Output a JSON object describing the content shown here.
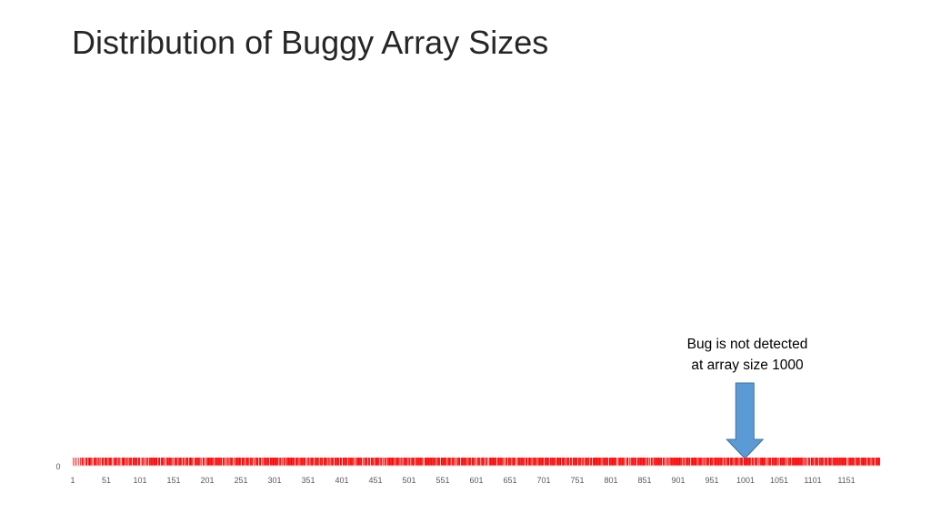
{
  "title": "Distribution of Buggy Array Sizes",
  "chart_data": {
    "type": "bar",
    "x_tick_labels": [
      "1",
      "51",
      "101",
      "151",
      "201",
      "251",
      "301",
      "351",
      "401",
      "451",
      "501",
      "551",
      "601",
      "651",
      "701",
      "751",
      "801",
      "851",
      "901",
      "951",
      "1001",
      "1051",
      "1101",
      "1151"
    ],
    "y_tick_labels": [
      "0"
    ],
    "x_range": [
      1,
      1200
    ],
    "bar_color": "#ff0000",
    "gaps": [
      2,
      3,
      5,
      7,
      8,
      10,
      11,
      13,
      17,
      19,
      23,
      29,
      31,
      37,
      41,
      43,
      47,
      53,
      59,
      61,
      67,
      71,
      73,
      79,
      83,
      89,
      97,
      101,
      103,
      107,
      109,
      113,
      127,
      131,
      137,
      139,
      149,
      151,
      157,
      163,
      167,
      173,
      179,
      181,
      191,
      193,
      197,
      199,
      211,
      223,
      227,
      229,
      233,
      239,
      241,
      251,
      257,
      263,
      269,
      271,
      277,
      281,
      283,
      293,
      307,
      311,
      313,
      317,
      331,
      337,
      347,
      349,
      353,
      359,
      367,
      373,
      379,
      383,
      389,
      397,
      401,
      409,
      419,
      421,
      431,
      433,
      439,
      443,
      449,
      457,
      461,
      463,
      467,
      479,
      487,
      491,
      499,
      503,
      509,
      521,
      523,
      541,
      547,
      557,
      563,
      569,
      571,
      577,
      587,
      593,
      599,
      601,
      607,
      613,
      617,
      619,
      631,
      641,
      643,
      647,
      653,
      659,
      661,
      673,
      677,
      683,
      691,
      701,
      709,
      719,
      727,
      733,
      739,
      743,
      751,
      757,
      761,
      769,
      773,
      787,
      797,
      809,
      811,
      821,
      823,
      827,
      829,
      839,
      853,
      857,
      859,
      863,
      877,
      881,
      883,
      887,
      907,
      911,
      919,
      929,
      937,
      941,
      947,
      953,
      967,
      971,
      977,
      983,
      991,
      997,
      1009,
      1013,
      1019,
      1021,
      1031,
      1033,
      1039,
      1049,
      1051,
      1061,
      1063,
      1069,
      1087,
      1091,
      1093,
      1097,
      1103,
      1109,
      1117,
      1123,
      1129,
      1151,
      1153,
      1163,
      1171,
      1181,
      1187,
      1193
    ],
    "annotation": {
      "lines": [
        "Bug is not detected",
        "at array size 1000"
      ],
      "x": 1000
    },
    "arrow_color": "#5b9bd5"
  }
}
